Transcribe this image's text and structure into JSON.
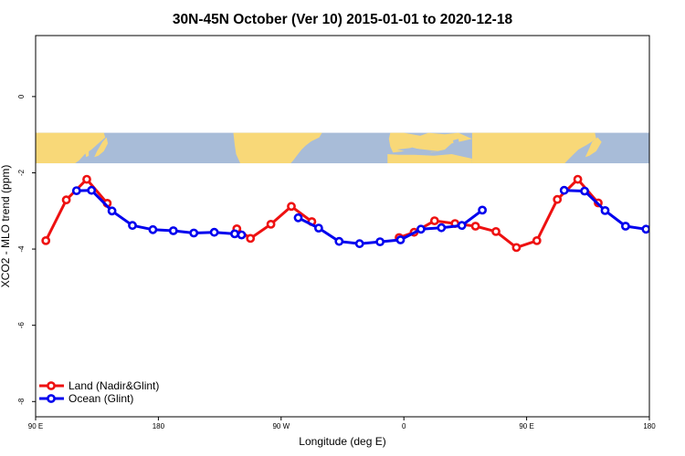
{
  "chart_data": {
    "type": "line",
    "title": "30N-45N October (Ver 10)   2015-01-01 to 2020-12-18",
    "xlabel": "Longitude (deg E)",
    "ylabel": "XCO2 - MLO trend (ppm)",
    "xlim": [
      90,
      540
    ],
    "ylim": [
      -8.4,
      1.6
    ],
    "x_ticks": [
      {
        "value": 90,
        "label": "90 E"
      },
      {
        "value": 180,
        "label": "180"
      },
      {
        "value": 270,
        "label": "90 W"
      },
      {
        "value": 360,
        "label": "0"
      },
      {
        "value": 450,
        "label": "90 E"
      },
      {
        "value": 540,
        "label": "180"
      }
    ],
    "y_ticks": [
      {
        "value": 0,
        "label": "0"
      },
      {
        "value": -2,
        "label": "-2"
      },
      {
        "value": -4,
        "label": "-4"
      },
      {
        "value": -6,
        "label": "-6"
      },
      {
        "value": -8,
        "label": "-8"
      }
    ],
    "legend_position": "bottom-left",
    "map_strip": {
      "y_top": -0.95,
      "y_bottom": -1.75,
      "ocean_color": "#a8bcd8",
      "land_color": "#f8d878"
    },
    "series": [
      {
        "name": "Land (Nadir&Glint)",
        "color": "#ee1111",
        "segments": [
          [
            [
              97.5,
              -3.78
            ],
            [
              112.5,
              -2.71
            ],
            [
              127.5,
              -2.17
            ],
            [
              142.5,
              -2.8
            ]
          ],
          [
            [
              237.5,
              -3.47
            ],
            [
              247.5,
              -3.72
            ],
            [
              262.5,
              -3.35
            ],
            [
              277.5,
              -2.88
            ],
            [
              292.5,
              -3.28
            ]
          ],
          [
            [
              356.5,
              -3.7
            ],
            [
              367.5,
              -3.56
            ],
            [
              382.5,
              -3.26
            ],
            [
              397.5,
              -3.33
            ],
            [
              412.5,
              -3.4
            ],
            [
              427.5,
              -3.54
            ],
            [
              442.5,
              -3.96
            ],
            [
              457.5,
              -3.78
            ],
            [
              472.5,
              -2.7
            ],
            [
              487.5,
              -2.17
            ],
            [
              502.5,
              -2.79
            ]
          ]
        ]
      },
      {
        "name": "Ocean (Glint)",
        "color": "#0000ee",
        "segments": [
          [
            [
              120,
              -2.47
            ],
            [
              131,
              -2.46
            ],
            [
              146,
              -3.0
            ],
            [
              161,
              -3.38
            ],
            [
              176,
              -3.49
            ],
            [
              191,
              -3.52
            ],
            [
              206,
              -3.58
            ],
            [
              221,
              -3.56
            ],
            [
              236,
              -3.6
            ],
            [
              241,
              -3.63
            ]
          ],
          [
            [
              282.5,
              -3.18
            ],
            [
              297.5,
              -3.45
            ],
            [
              312.5,
              -3.8
            ],
            [
              327.5,
              -3.86
            ],
            [
              342.5,
              -3.81
            ],
            [
              357.5,
              -3.76
            ],
            [
              372.5,
              -3.48
            ],
            [
              387.5,
              -3.44
            ],
            [
              402.5,
              -3.38
            ],
            [
              417.5,
              -2.98
            ]
          ],
          [
            [
              477.5,
              -2.46
            ],
            [
              492.5,
              -2.48
            ],
            [
              507.5,
              -2.99
            ],
            [
              522.5,
              -3.4
            ],
            [
              537.5,
              -3.48
            ]
          ]
        ]
      }
    ]
  }
}
